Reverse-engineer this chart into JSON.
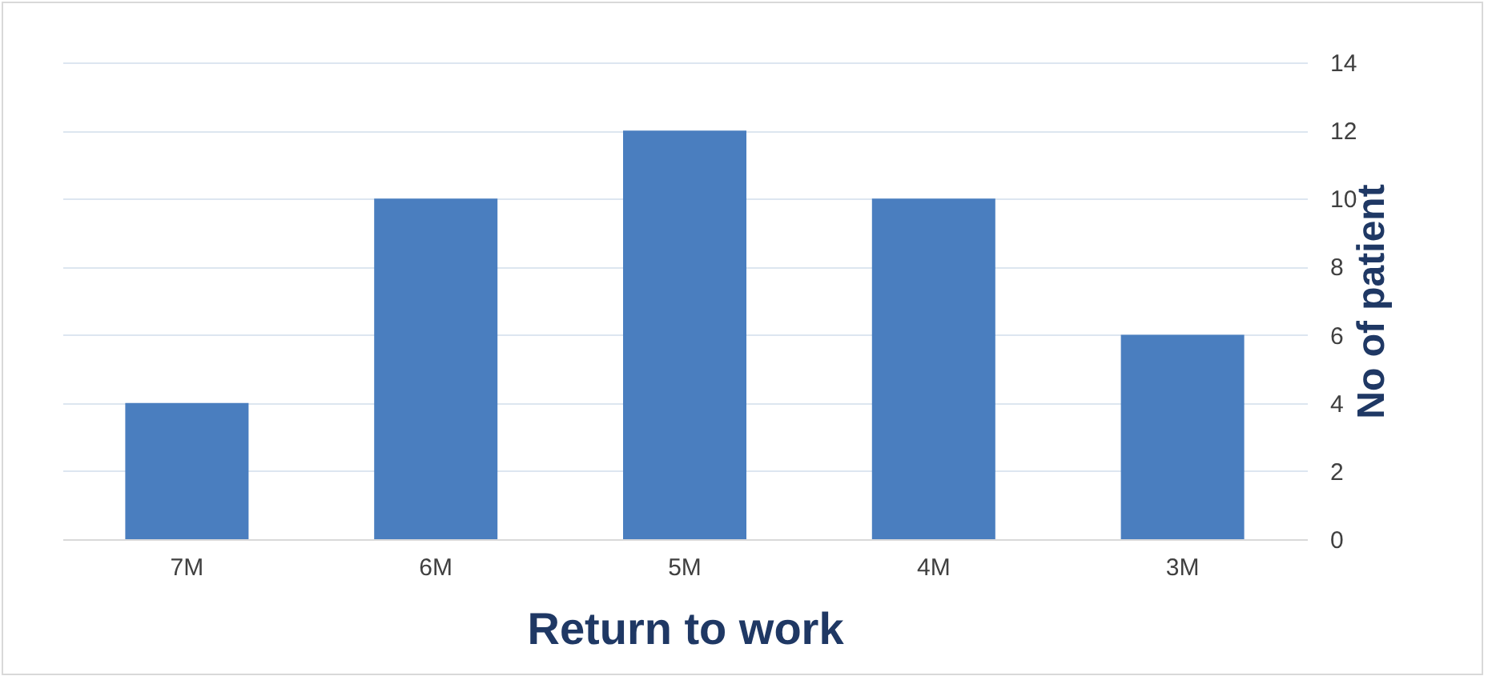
{
  "chart_data": {
    "type": "bar",
    "xlabel": "Return to work",
    "ylabel": "No of patient",
    "categories": [
      "7M",
      "6M",
      "5M",
      "4M",
      "3M"
    ],
    "values": [
      4,
      10,
      12,
      10,
      6
    ],
    "color": "#4a7ebf",
    "ylim": [
      0,
      14
    ],
    "yticks": [
      0,
      2,
      4,
      6,
      8,
      10,
      12,
      14
    ],
    "grid": "y"
  }
}
